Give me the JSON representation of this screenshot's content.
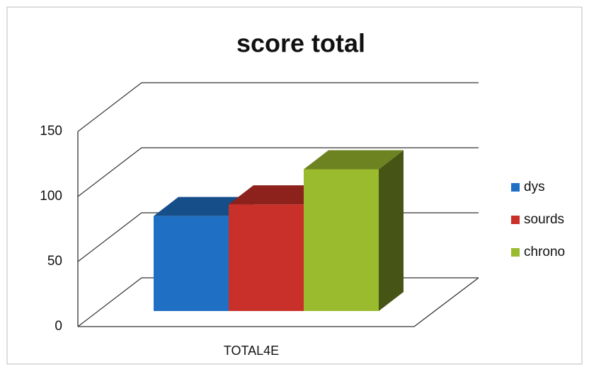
{
  "chart_data": {
    "type": "bar3d",
    "title": "score total",
    "categories": [
      "TOTAL4E"
    ],
    "series": [
      {
        "name": "dys",
        "color": "#1f6fc5",
        "values": [
          73
        ]
      },
      {
        "name": "sourds",
        "color": "#c9302a",
        "values": [
          82
        ]
      },
      {
        "name": "chrono",
        "color": "#9bbb2f",
        "values": [
          109
        ]
      }
    ],
    "ylim": [
      0,
      150
    ],
    "yticks": [
      0,
      50,
      100,
      150
    ],
    "grid": true,
    "legend": "right"
  }
}
